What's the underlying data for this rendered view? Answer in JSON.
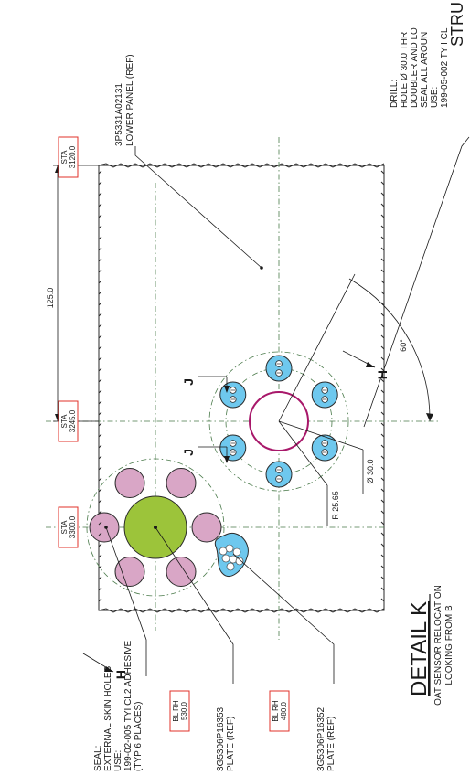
{
  "header_cut": "STRU",
  "drill_note": {
    "line1": "DRILL:",
    "line2": "HOLE Ø 30.0 THR",
    "line3": "DOUBLER AND LO",
    "line4": "SEAL ALL AROUN",
    "line5": "USE:",
    "line6": "199-05-002 TY I CL"
  },
  "lower_panel": {
    "part": "3P5331A02131",
    "desc": "LOWER PANEL (REF)"
  },
  "stations": [
    {
      "label": "STA",
      "value": "3120.0"
    },
    {
      "label": "STA",
      "value": "3245.0"
    },
    {
      "label": "STA",
      "value": "3300.0"
    }
  ],
  "dimension_125": "125.0",
  "angle": "60°",
  "dim_diameter": "Ø 30.0",
  "dim_radius": "R 25.65",
  "section_j": "J",
  "section_h": "H",
  "seal_note": {
    "line1": "SEAL:",
    "line2": "EXTERNAL SKIN HOLES",
    "line3": "USE:",
    "line4": "199-02-005 TYI CL2 ADHESIVE",
    "line5": "(TYP 6 PLACES)"
  },
  "butt_lines": [
    {
      "label": "BL RH",
      "value": "530.0"
    },
    {
      "label": "BL RH",
      "value": "480.0"
    }
  ],
  "plate_1": {
    "part": "3G5306P16353",
    "desc": "PLATE (REF)"
  },
  "plate_2": {
    "part": "3G5306P16352",
    "desc": "PLATE (REF)"
  },
  "detail": {
    "title": "DETAIL K",
    "sub1": "OAT SENSOR RELOCATION",
    "sub2": "LOOKING FROM B"
  },
  "colors": {
    "panel_fill": "#fbf9e6",
    "fastener_blue": "#6ec8ee",
    "hole_pink": "#d9a6c6",
    "sensor_green": "#9cc43a",
    "circle_magenta": "#a8186a",
    "dash_green": "#4a7a4a",
    "station_red": "#e0302a"
  }
}
